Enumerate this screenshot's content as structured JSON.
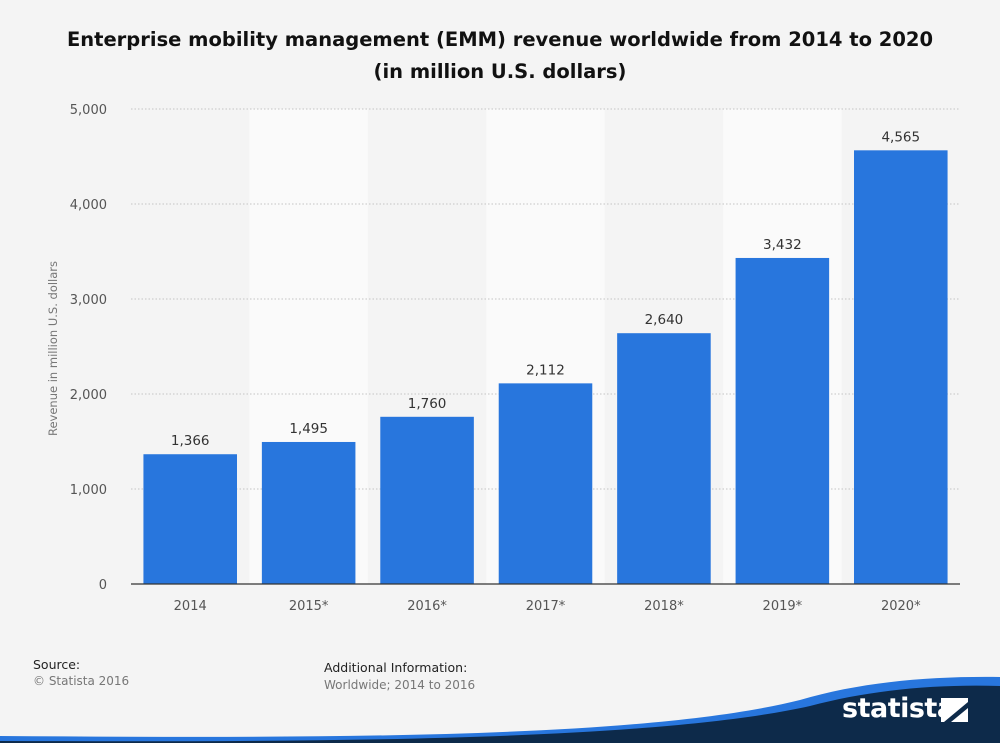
{
  "title": "Enterprise mobility management (EMM) revenue worldwide from 2014 to 2020 (in million U.S. dollars)",
  "chart_data": {
    "type": "bar",
    "categories": [
      "2014",
      "2015*",
      "2016*",
      "2017*",
      "2018*",
      "2019*",
      "2020*"
    ],
    "values": [
      1366,
      1495,
      1760,
      2112,
      2640,
      3432,
      4565
    ],
    "value_labels": [
      "1,366",
      "1,495",
      "1,760",
      "2,112",
      "2,640",
      "3,432",
      "4,565"
    ],
    "ylabel": "Revenue in million U.S. dollars",
    "xlabel": "",
    "ylim": [
      0,
      5000
    ],
    "yticks": [
      0,
      1000,
      2000,
      3000,
      4000,
      5000
    ],
    "ytick_labels": [
      "0",
      "1,000",
      "2,000",
      "3,000",
      "4,000",
      "5,000"
    ],
    "grid": true,
    "bar_color": "#2876dd"
  },
  "footer": {
    "source_label": "Source:",
    "source_value": "© Statista 2016",
    "info_label": "Additional Information:",
    "info_value": "Worldwide; 2014 to 2016"
  },
  "brand": {
    "name": "statista",
    "band_color": "#0d2a4a",
    "accent_color": "#2876dd"
  }
}
